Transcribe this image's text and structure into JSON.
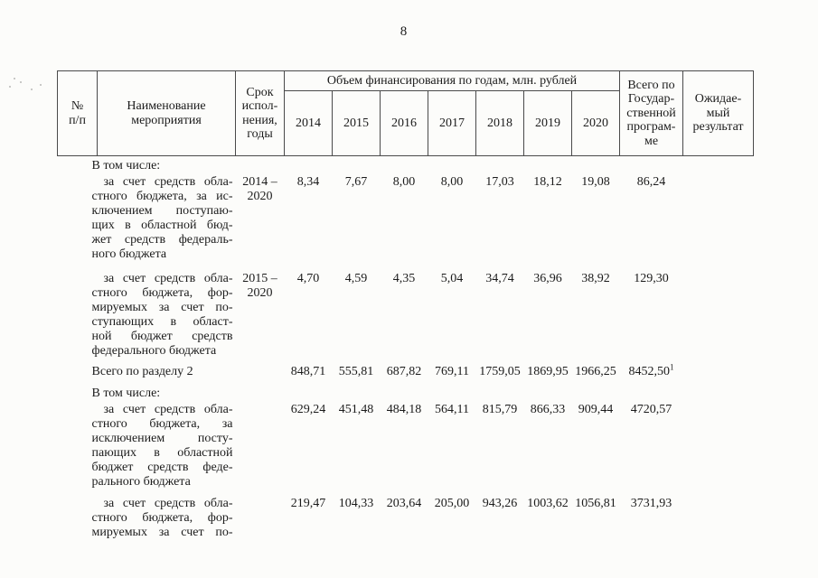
{
  "page": {
    "number": "8"
  },
  "table": {
    "header": {
      "col_num": "№\nп/п",
      "col_name": "Наименование\nмероприятия",
      "col_term": "Срок\nиспол-\nнения,\nгоды",
      "col_funding_group": "Объем финансирования по годам, млн. рублей",
      "years": [
        "2014",
        "2015",
        "2016",
        "2017",
        "2018",
        "2019",
        "2020"
      ],
      "col_total": "Всего по\nГосудар-\nственной\nпрограм-\nме",
      "col_expected": "Ожидае-\nмый\nрезультат"
    },
    "rows": [
      {
        "type": "label",
        "label": "В том числе:"
      },
      {
        "name": "за счет средств обла-\nстного бюджета, за ис-\nключением поступаю-\nщих в областной бюд-\nжет средств федераль-\nного бюджета",
        "term": "2014 –\n2020",
        "values": [
          "8,34",
          "7,67",
          "8,00",
          "8,00",
          "17,03",
          "18,12",
          "19,08"
        ],
        "total": "86,24"
      },
      {
        "name": "за счет средств обла-\nстного бюджета, фор-\nмируемых за счет по-\nступающих в област-\nной бюджет средств\nфедерального бюджета",
        "term": "2015 –\n2020",
        "values": [
          "4,70",
          "4,59",
          "4,35",
          "5,04",
          "34,74",
          "36,96",
          "38,92"
        ],
        "total": "129,30"
      },
      {
        "name": "Всего по разделу 2",
        "term": "",
        "values": [
          "848,71",
          "555,81",
          "687,82",
          "769,11",
          "1759,05",
          "1869,95",
          "1966,25"
        ],
        "total": "8452,50",
        "total_sup": "1"
      },
      {
        "type": "label",
        "label": "В том числе:"
      },
      {
        "name": "за счет средств обла-\nстного бюджета, за\nисключением посту-\nпающих в областной\nбюджет средств феде-\nрального бюджета",
        "term": "",
        "values": [
          "629,24",
          "451,48",
          "484,18",
          "564,11",
          "815,79",
          "866,33",
          "909,44"
        ],
        "total": "4720,57"
      },
      {
        "name": "за счет средств обла-\nстного бюджета, фор-\nмируемых за счет  по-",
        "term": "",
        "values": [
          "219,47",
          "104,33",
          "203,64",
          "205,00",
          "943,26",
          "1003,62",
          "1056,81"
        ],
        "total": "3731,93"
      }
    ]
  }
}
